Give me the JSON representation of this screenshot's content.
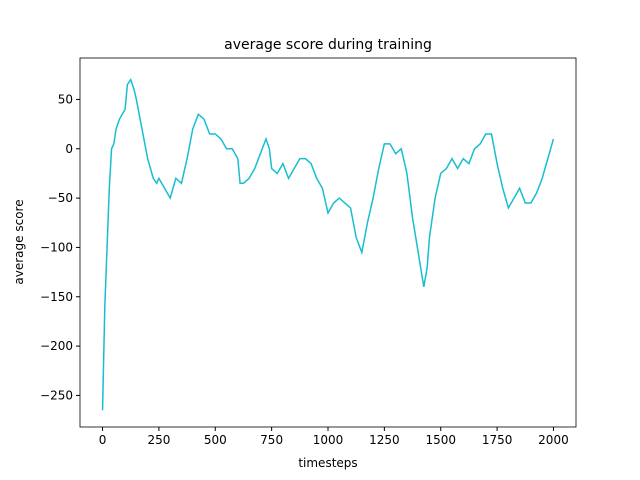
{
  "chart_data": {
    "type": "line",
    "title": "average score during training",
    "x_label": "timesteps",
    "y_label": "average score",
    "x": [
      0,
      10,
      20,
      30,
      40,
      50,
      60,
      75,
      100,
      110,
      125,
      140,
      150,
      175,
      200,
      225,
      240,
      250,
      275,
      300,
      325,
      350,
      375,
      400,
      425,
      450,
      475,
      500,
      525,
      550,
      575,
      600,
      610,
      625,
      650,
      675,
      700,
      725,
      740,
      750,
      775,
      800,
      825,
      850,
      875,
      900,
      925,
      950,
      975,
      1000,
      1025,
      1050,
      1075,
      1100,
      1125,
      1150,
      1175,
      1200,
      1225,
      1250,
      1275,
      1300,
      1325,
      1350,
      1375,
      1400,
      1425,
      1440,
      1450,
      1475,
      1500,
      1525,
      1550,
      1575,
      1600,
      1625,
      1650,
      1675,
      1700,
      1725,
      1750,
      1775,
      1800,
      1825,
      1850,
      1875,
      1900,
      1925,
      1950,
      1975,
      2000
    ],
    "series": [
      {
        "color": "#17becf",
        "values": [
          -265,
          -160,
          -100,
          -40,
          0,
          5,
          20,
          30,
          40,
          65,
          70,
          60,
          50,
          20,
          -10,
          -30,
          -35,
          -30,
          -40,
          -50,
          -30,
          -35,
          -10,
          20,
          35,
          30,
          15,
          15,
          10,
          0,
          0,
          -10,
          -35,
          -35,
          -30,
          -20,
          -5,
          10,
          0,
          -20,
          -25,
          -15,
          -30,
          -20,
          -10,
          -10,
          -15,
          -30,
          -40,
          -65,
          -55,
          -50,
          -55,
          -60,
          -90,
          -105,
          -75,
          -50,
          -20,
          5,
          5,
          -5,
          0,
          -25,
          -70,
          -105,
          -140,
          -120,
          -90,
          -50,
          -25,
          -20,
          -10,
          -20,
          -10,
          -15,
          0,
          5,
          15,
          15,
          -15,
          -40,
          -60,
          -50,
          -40,
          -55,
          -55,
          -45,
          -30,
          -10,
          10
        ]
      }
    ],
    "xlim": [
      -100,
      2100
    ],
    "ylim": [
      -282,
      92
    ],
    "xticks": [
      0,
      250,
      500,
      750,
      1000,
      1250,
      1500,
      1750,
      2000
    ],
    "yticks": [
      {
        "value": -250,
        "label": "−250"
      },
      {
        "value": -200,
        "label": "−200"
      },
      {
        "value": -150,
        "label": "−150"
      },
      {
        "value": -100,
        "label": "−100"
      },
      {
        "value": -50,
        "label": "−50"
      },
      0,
      50
    ]
  }
}
